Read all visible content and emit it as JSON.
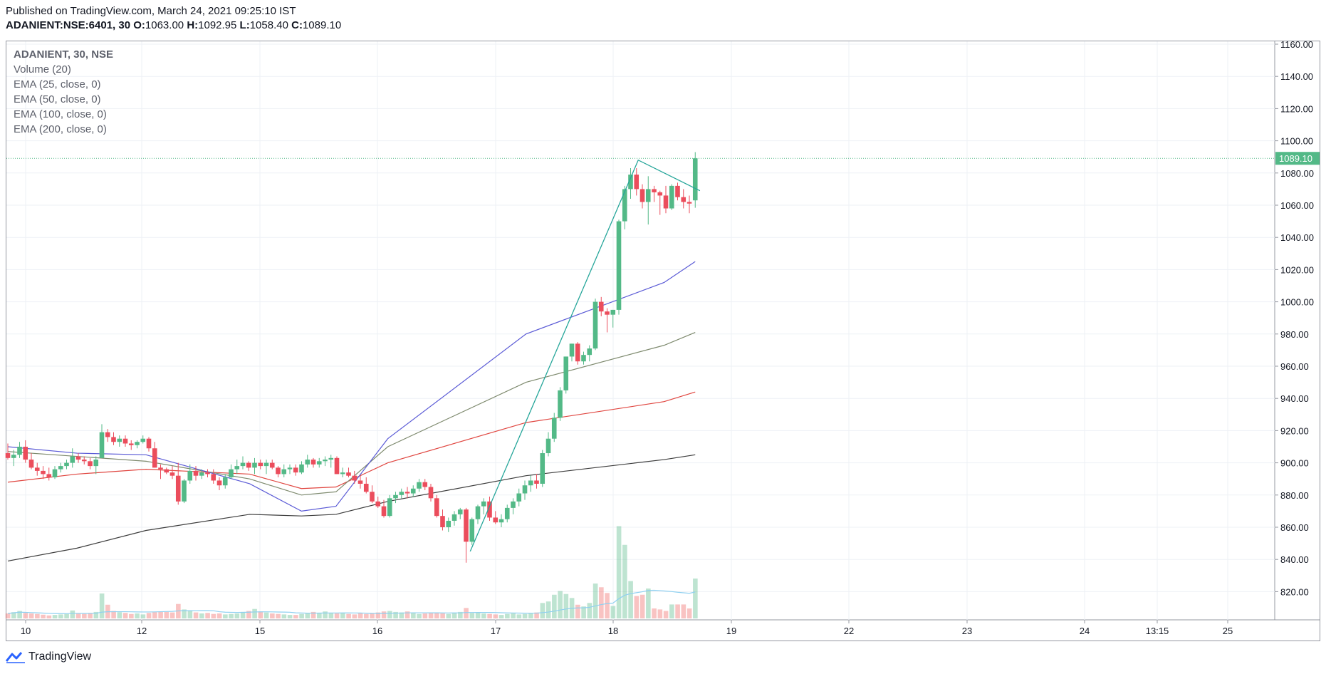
{
  "header": {
    "published": "Published on TradingView.com, March 24, 2021 09:25:10 IST",
    "symbol": "ADANIENT:NSE:6401, 30",
    "o_label": "O:",
    "o": "1063.00",
    "h_label": "H:",
    "h": "1092.95",
    "l_label": "L:",
    "l": "1058.40",
    "c_label": "C:",
    "c": "1089.10"
  },
  "legend": {
    "symbol": "ADANIENT, 30, NSE",
    "volume": "Volume (20)",
    "ema25": "EMA (25, close, 0)",
    "ema50": "EMA (50, close, 0)",
    "ema100": "EMA (100, close, 0)",
    "ema200": "EMA (200, close, 0)"
  },
  "price_tag": "1089.10",
  "brand": {
    "name": "TradingView",
    "logo_icon": "tradingview-logo-icon"
  },
  "colors": {
    "up": "#26a69a",
    "up_body": "#53b987",
    "down": "#ef5350",
    "down_body": "#eb4d5c",
    "ema25": "#5b5bd6",
    "ema50": "#7e8a6e",
    "ema100": "#e0453f",
    "ema200": "#3c3c3c",
    "vol_ma": "#8fd0f0",
    "trend": "#26a69a"
  },
  "chart_data": {
    "type": "candlestick",
    "y_ticks": [
      "1160.00",
      "1140.00",
      "1120.00",
      "1100.00",
      "1080.00",
      "1060.00",
      "1040.00",
      "1020.00",
      "1000.00",
      "980.00",
      "960.00",
      "940.00",
      "920.00",
      "900.00",
      "880.00",
      "860.00",
      "840.00",
      "820.00"
    ],
    "ylim": [
      800,
      1162
    ],
    "x_ticks": [
      "10",
      "12",
      "15",
      "16",
      "17",
      "18",
      "19",
      "22",
      "23",
      "24",
      "13:15",
      "25"
    ],
    "candles": [
      [
        906,
        912,
        902,
        903
      ],
      [
        903,
        908,
        898,
        905
      ],
      [
        905,
        913,
        903,
        910
      ],
      [
        910,
        914,
        900,
        902
      ],
      [
        902,
        906,
        896,
        897
      ],
      [
        897,
        900,
        892,
        895
      ],
      [
        895,
        898,
        890,
        893
      ],
      [
        893,
        897,
        889,
        891
      ],
      [
        891,
        898,
        890,
        896
      ],
      [
        896,
        900,
        894,
        898
      ],
      [
        898,
        902,
        896,
        900
      ],
      [
        900,
        909,
        897,
        904
      ],
      [
        904,
        906,
        900,
        902
      ],
      [
        902,
        904,
        899,
        901
      ],
      [
        901,
        903,
        896,
        898
      ],
      [
        898,
        904,
        893,
        902
      ],
      [
        903,
        924,
        903,
        919
      ],
      [
        919,
        921,
        913,
        916
      ],
      [
        916,
        919,
        911,
        913
      ],
      [
        913,
        917,
        910,
        915
      ],
      [
        915,
        917,
        910,
        912
      ],
      [
        912,
        914,
        908,
        911
      ],
      [
        911,
        914,
        909,
        913
      ],
      [
        913,
        917,
        912,
        915
      ],
      [
        915,
        916,
        907,
        909
      ],
      [
        909,
        913,
        897,
        897
      ],
      [
        897,
        899,
        890,
        896
      ],
      [
        896,
        897,
        893,
        894
      ],
      [
        894,
        898,
        890,
        892
      ],
      [
        892,
        900,
        874,
        876
      ],
      [
        876,
        890,
        875,
        889
      ],
      [
        889,
        899,
        887,
        895
      ],
      [
        895,
        898,
        889,
        892
      ],
      [
        892,
        896,
        890,
        894
      ],
      [
        894,
        896,
        891,
        893
      ],
      [
        893,
        896,
        887,
        889
      ],
      [
        889,
        891,
        883,
        886
      ],
      [
        886,
        893,
        884,
        891
      ],
      [
        891,
        899,
        890,
        896
      ],
      [
        896,
        902,
        893,
        898
      ],
      [
        898,
        904,
        896,
        900
      ],
      [
        900,
        901,
        895,
        897
      ],
      [
        897,
        903,
        893,
        900
      ],
      [
        900,
        902,
        896,
        898
      ],
      [
        898,
        902,
        893,
        900
      ],
      [
        900,
        902,
        896,
        897
      ],
      [
        897,
        898,
        891,
        893
      ],
      [
        893,
        899,
        891,
        896
      ],
      [
        896,
        899,
        893,
        897
      ],
      [
        897,
        899,
        892,
        894
      ],
      [
        894,
        901,
        893,
        899
      ],
      [
        899,
        905,
        897,
        902
      ],
      [
        902,
        903,
        897,
        899
      ],
      [
        899,
        903,
        897,
        901
      ],
      [
        901,
        904,
        898,
        902
      ],
      [
        902,
        905,
        897,
        903
      ],
      [
        903,
        904,
        893,
        893
      ],
      [
        893,
        897,
        891,
        894
      ],
      [
        894,
        897,
        891,
        892
      ],
      [
        892,
        895,
        887,
        889
      ],
      [
        889,
        892,
        884,
        887
      ],
      [
        887,
        891,
        881,
        882
      ],
      [
        882,
        886,
        875,
        876
      ],
      [
        876,
        879,
        872,
        873
      ],
      [
        873,
        877,
        866,
        867
      ],
      [
        867,
        880,
        866,
        878
      ],
      [
        878,
        882,
        875,
        880
      ],
      [
        880,
        884,
        878,
        882
      ],
      [
        882,
        885,
        878,
        881
      ],
      [
        881,
        886,
        879,
        884
      ],
      [
        884,
        890,
        882,
        888
      ],
      [
        888,
        890,
        883,
        885
      ],
      [
        885,
        887,
        876,
        878
      ],
      [
        878,
        880,
        866,
        867
      ],
      [
        867,
        871,
        858,
        860
      ],
      [
        860,
        866,
        857,
        864
      ],
      [
        864,
        870,
        861,
        868
      ],
      [
        868,
        872,
        865,
        871
      ],
      [
        871,
        872,
        838,
        851
      ],
      [
        851,
        866,
        849,
        865
      ],
      [
        865,
        874,
        862,
        873
      ],
      [
        873,
        878,
        868,
        876
      ],
      [
        876,
        879,
        864,
        866
      ],
      [
        866,
        870,
        862,
        863
      ],
      [
        863,
        868,
        860,
        865
      ],
      [
        865,
        874,
        863,
        872
      ],
      [
        872,
        878,
        868,
        876
      ],
      [
        876,
        884,
        873,
        881
      ],
      [
        881,
        889,
        877,
        886
      ],
      [
        886,
        892,
        882,
        889
      ],
      [
        889,
        893,
        884,
        887
      ],
      [
        887,
        908,
        885,
        906
      ],
      [
        906,
        919,
        904,
        915
      ],
      [
        915,
        931,
        913,
        928
      ],
      [
        928,
        947,
        926,
        945
      ],
      [
        945,
        966,
        943,
        966
      ],
      [
        966,
        974,
        963,
        974
      ],
      [
        974,
        975,
        961,
        963
      ],
      [
        963,
        969,
        961,
        967
      ],
      [
        967,
        973,
        963,
        971
      ],
      [
        971,
        1002,
        970,
        1000
      ],
      [
        1000,
        1003,
        991,
        994
      ],
      [
        994,
        996,
        981,
        992
      ],
      [
        992,
        995,
        984,
        995
      ],
      [
        995,
        1051,
        992,
        1050
      ],
      [
        1050,
        1072,
        1045,
        1070
      ],
      [
        1070,
        1083,
        1064,
        1079
      ],
      [
        1079,
        1083,
        1066,
        1070
      ],
      [
        1070,
        1073,
        1058,
        1062
      ],
      [
        1062,
        1078,
        1048,
        1070
      ],
      [
        1070,
        1072,
        1062,
        1068
      ],
      [
        1068,
        1069,
        1054,
        1066
      ],
      [
        1066,
        1072,
        1055,
        1058
      ],
      [
        1058,
        1073,
        1057,
        1072
      ],
      [
        1072,
        1074,
        1063,
        1065
      ],
      [
        1065,
        1070,
        1058,
        1062
      ],
      [
        1062,
        1066,
        1055,
        1061
      ],
      [
        1063,
        1092.95,
        1058.4,
        1089.1
      ]
    ],
    "volume_relative": [
      0.2,
      0.25,
      0.3,
      0.22,
      0.2,
      0.18,
      0.15,
      0.12,
      0.14,
      0.16,
      0.18,
      0.32,
      0.2,
      0.18,
      0.22,
      0.26,
      1.0,
      0.55,
      0.3,
      0.25,
      0.22,
      0.18,
      0.2,
      0.16,
      0.22,
      0.25,
      0.28,
      0.26,
      0.24,
      0.58,
      0.36,
      0.3,
      0.24,
      0.2,
      0.22,
      0.18,
      0.2,
      0.16,
      0.18,
      0.2,
      0.26,
      0.3,
      0.38,
      0.28,
      0.24,
      0.2,
      0.18,
      0.16,
      0.14,
      0.14,
      0.18,
      0.2,
      0.26,
      0.22,
      0.28,
      0.22,
      0.2,
      0.22,
      0.18,
      0.16,
      0.2,
      0.18,
      0.22,
      0.24,
      0.28,
      0.3,
      0.26,
      0.24,
      0.28,
      0.22,
      0.18,
      0.2,
      0.22,
      0.24,
      0.2,
      0.18,
      0.22,
      0.26,
      0.42,
      0.22,
      0.24,
      0.2,
      0.18,
      0.16,
      0.14,
      0.18,
      0.2,
      0.16,
      0.18,
      0.2,
      0.24,
      0.62,
      0.68,
      0.95,
      1.1,
      0.98,
      0.82,
      0.55,
      0.48,
      0.62,
      1.4,
      1.25,
      1.02,
      0.5,
      3.7,
      2.95,
      1.5,
      0.9,
      0.95,
      1.2,
      0.4,
      0.36,
      0.3,
      0.56,
      0.56,
      0.56,
      0.4,
      1.6
    ],
    "ema25": [
      [
        0,
        910
      ],
      [
        20,
        906
      ],
      [
        40,
        905
      ],
      [
        70,
        887
      ],
      [
        85,
        870
      ],
      [
        95,
        873
      ],
      [
        110,
        915
      ],
      [
        150,
        980
      ],
      [
        190,
        1012
      ],
      [
        199,
        1025
      ]
    ],
    "ema50": [
      [
        0,
        907
      ],
      [
        20,
        904
      ],
      [
        40,
        901
      ],
      [
        70,
        890
      ],
      [
        85,
        880
      ],
      [
        95,
        882
      ],
      [
        110,
        910
      ],
      [
        150,
        950
      ],
      [
        190,
        973
      ],
      [
        199,
        981
      ]
    ],
    "ema100": [
      [
        0,
        888
      ],
      [
        20,
        893
      ],
      [
        40,
        896
      ],
      [
        70,
        893
      ],
      [
        85,
        884
      ],
      [
        95,
        885
      ],
      [
        110,
        900
      ],
      [
        150,
        925
      ],
      [
        190,
        938
      ],
      [
        199,
        944
      ]
    ],
    "ema200": [
      [
        0,
        839
      ],
      [
        20,
        847
      ],
      [
        40,
        858
      ],
      [
        70,
        868
      ],
      [
        85,
        867
      ],
      [
        95,
        868
      ],
      [
        110,
        876
      ],
      [
        150,
        892
      ],
      [
        190,
        902
      ],
      [
        199,
        905
      ]
    ]
  }
}
